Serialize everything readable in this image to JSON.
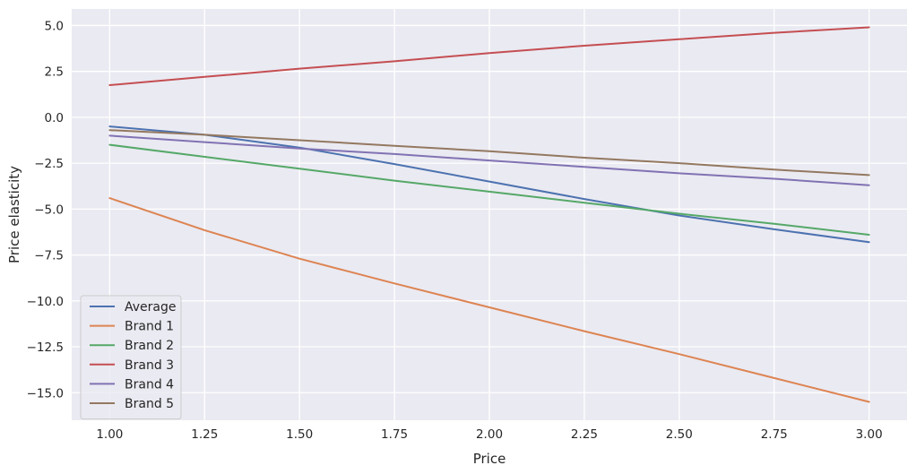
{
  "chart_data": {
    "type": "line",
    "title": "",
    "xlabel": "Price",
    "ylabel": "Price elasticity",
    "xlim": [
      0.9,
      3.1
    ],
    "ylim": [
      -16.5,
      5.9
    ],
    "xticks": [
      1.0,
      1.25,
      1.5,
      1.75,
      2.0,
      2.25,
      2.5,
      2.75,
      3.0
    ],
    "xtick_labels": [
      "1.00",
      "1.25",
      "1.50",
      "1.75",
      "2.00",
      "2.25",
      "2.50",
      "2.75",
      "3.00"
    ],
    "yticks": [
      5.0,
      2.5,
      0.0,
      -2.5,
      -5.0,
      -7.5,
      -10.0,
      -12.5,
      -15.0
    ],
    "ytick_labels": [
      "5.0",
      "2.5",
      "0.0",
      "−2.5",
      "−5.0",
      "−7.5",
      "−10.0",
      "−12.5",
      "−15.0"
    ],
    "grid": true,
    "legend_position": "lower-left",
    "x": [
      1.0,
      1.25,
      1.5,
      1.75,
      2.0,
      2.25,
      2.5,
      2.75,
      3.0
    ],
    "series": [
      {
        "name": "Average",
        "color": "#4c72b0",
        "values": [
          -0.5,
          -0.95,
          -1.65,
          -2.55,
          -3.5,
          -4.45,
          -5.35,
          -6.1,
          -6.8
        ]
      },
      {
        "name": "Brand 1",
        "color": "#dd8452",
        "values": [
          -4.4,
          -6.15,
          -7.7,
          -9.05,
          -10.35,
          -11.65,
          -12.9,
          -14.2,
          -15.5
        ]
      },
      {
        "name": "Brand 2",
        "color": "#55a868",
        "values": [
          -1.5,
          -2.15,
          -2.8,
          -3.45,
          -4.05,
          -4.65,
          -5.25,
          -5.8,
          -6.4
        ]
      },
      {
        "name": "Brand 3",
        "color": "#c44e52",
        "values": [
          1.75,
          2.2,
          2.65,
          3.05,
          3.5,
          3.9,
          4.25,
          4.6,
          4.9
        ]
      },
      {
        "name": "Brand 4",
        "color": "#8172b3",
        "values": [
          -1.0,
          -1.35,
          -1.7,
          -2.0,
          -2.35,
          -2.7,
          -3.05,
          -3.35,
          -3.7
        ]
      },
      {
        "name": "Brand 5",
        "color": "#937860",
        "values": [
          -0.7,
          -0.95,
          -1.25,
          -1.55,
          -1.85,
          -2.2,
          -2.5,
          -2.85,
          -3.15
        ]
      }
    ]
  }
}
